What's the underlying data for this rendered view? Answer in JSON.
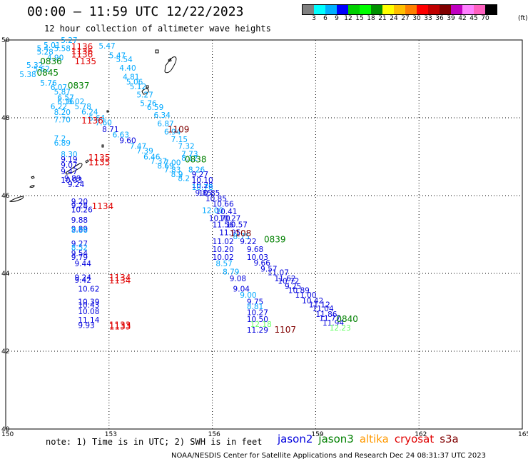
{
  "header": {
    "title": "00:00 – 11:59 UTC 12/22/2023",
    "subtitle": "12 hour collection of altimeter wave heights"
  },
  "colorbar": {
    "colors": [
      "#808080",
      "#00ffff",
      "#00b0ff",
      "#0000ff",
      "#00d000",
      "#00ff00",
      "#009000",
      "#ffff00",
      "#ffc000",
      "#ff8000",
      "#ff0000",
      "#c00000",
      "#800000",
      "#c000c0",
      "#ff80ff",
      "#ff60c0",
      "#000000"
    ],
    "labels": [
      "3",
      "6",
      "9",
      "12",
      "15",
      "18",
      "21",
      "24",
      "27",
      "30",
      "33",
      "36",
      "39",
      "42",
      "45",
      "70"
    ],
    "unit": "(ft)"
  },
  "map": {
    "lon_range": [
      150,
      165
    ],
    "lat_range": [
      40,
      50
    ],
    "lat_ticks": [
      50,
      48,
      46,
      44,
      42,
      40
    ],
    "lon_ticks": [
      150,
      153,
      156,
      159,
      162,
      165
    ]
  },
  "observations": [
    {
      "v": "5.27",
      "lon": 151.6,
      "lat": 49.93,
      "c": "#00a8ff"
    },
    {
      "v": "5.01",
      "lon": 151.1,
      "lat": 49.8,
      "c": "#00a8ff"
    },
    {
      "v": "5.47",
      "lon": 152.7,
      "lat": 49.78,
      "c": "#00a8ff"
    },
    {
      "v": "5.4",
      "lon": 150.9,
      "lat": 49.72,
      "c": "#00a8ff"
    },
    {
      "v": "5.58",
      "lon": 151.4,
      "lat": 49.72,
      "c": "#00a8ff"
    },
    {
      "v": "5.47",
      "lon": 153.0,
      "lat": 49.53,
      "c": "#00a8ff"
    },
    {
      "v": "5.28",
      "lon": 150.9,
      "lat": 49.62,
      "c": "#00a8ff"
    },
    {
      "v": "4.90",
      "lon": 151.2,
      "lat": 49.48,
      "c": "#00a8ff"
    },
    {
      "v": "5.54",
      "lon": 153.2,
      "lat": 49.43,
      "c": "#00a8ff"
    },
    {
      "v": "4.40",
      "lon": 153.3,
      "lat": 49.21,
      "c": "#00a8ff"
    },
    {
      "v": "5.32",
      "lon": 150.6,
      "lat": 49.28,
      "c": "#00a8ff"
    },
    {
      "v": "5.62",
      "lon": 150.8,
      "lat": 49.18,
      "c": "#00a8ff"
    },
    {
      "v": "4.81",
      "lon": 153.4,
      "lat": 48.98,
      "c": "#00a8ff"
    },
    {
      "v": "5.38",
      "lon": 150.4,
      "lat": 49.05,
      "c": "#00a8ff"
    },
    {
      "v": "5.76",
      "lon": 151.0,
      "lat": 48.83,
      "c": "#00a8ff"
    },
    {
      "v": "5.06",
      "lon": 153.5,
      "lat": 48.85,
      "c": "#00a8ff"
    },
    {
      "v": "6.07",
      "lon": 151.3,
      "lat": 48.72,
      "c": "#00a8ff"
    },
    {
      "v": "5.12",
      "lon": 153.6,
      "lat": 48.73,
      "c": "#00a8ff"
    },
    {
      "v": "5.87",
      "lon": 151.4,
      "lat": 48.6,
      "c": "#00a8ff"
    },
    {
      "v": "5.27",
      "lon": 153.8,
      "lat": 48.52,
      "c": "#00a8ff"
    },
    {
      "v": "6.57",
      "lon": 151.5,
      "lat": 48.45,
      "c": "#00a8ff"
    },
    {
      "v": "5.76",
      "lon": 153.9,
      "lat": 48.3,
      "c": "#00a8ff"
    },
    {
      "v": "6.16",
      "lon": 151.5,
      "lat": 48.35,
      "c": "#00a8ff"
    },
    {
      "v": "6.02",
      "lon": 151.8,
      "lat": 48.35,
      "c": "#00a8ff"
    },
    {
      "v": "6.22",
      "lon": 151.3,
      "lat": 48.22,
      "c": "#00a8ff"
    },
    {
      "v": "5.78",
      "lon": 152.0,
      "lat": 48.22,
      "c": "#00a8ff"
    },
    {
      "v": "6.59",
      "lon": 154.1,
      "lat": 48.2,
      "c": "#00a8ff"
    },
    {
      "v": "6.24",
      "lon": 152.2,
      "lat": 48.08,
      "c": "#00a8ff"
    },
    {
      "v": "8.20",
      "lon": 151.4,
      "lat": 48.07,
      "c": "#00a8ff"
    },
    {
      "v": "6.34",
      "lon": 154.3,
      "lat": 48.0,
      "c": "#00a8ff"
    },
    {
      "v": "6.64",
      "lon": 152.4,
      "lat": 47.93,
      "c": "#00a8ff"
    },
    {
      "v": "7.70",
      "lon": 151.4,
      "lat": 47.88,
      "c": "#00a8ff"
    },
    {
      "v": "6.87",
      "lon": 154.4,
      "lat": 47.78,
      "c": "#00a8ff"
    },
    {
      "v": "7.60",
      "lon": 152.6,
      "lat": 47.81,
      "c": "#00a8ff"
    },
    {
      "v": "8.71",
      "lon": 152.8,
      "lat": 47.63,
      "c": "#0000dd"
    },
    {
      "v": "6.94",
      "lon": 154.6,
      "lat": 47.57,
      "c": "#00a8ff"
    },
    {
      "v": "6.63",
      "lon": 153.1,
      "lat": 47.5,
      "c": "#00a8ff"
    },
    {
      "v": "7.2",
      "lon": 151.4,
      "lat": 47.4,
      "c": "#00a8ff"
    },
    {
      "v": "7.15",
      "lon": 154.8,
      "lat": 47.38,
      "c": "#00a8ff"
    },
    {
      "v": "9.60",
      "lon": 153.3,
      "lat": 47.35,
      "c": "#0000dd"
    },
    {
      "v": "6.89",
      "lon": 151.4,
      "lat": 47.28,
      "c": "#00a8ff"
    },
    {
      "v": "7.32",
      "lon": 155.0,
      "lat": 47.2,
      "c": "#00a8ff"
    },
    {
      "v": "7.47",
      "lon": 153.6,
      "lat": 47.2,
      "c": "#00a8ff"
    },
    {
      "v": "7.39",
      "lon": 153.8,
      "lat": 47.08,
      "c": "#00a8ff"
    },
    {
      "v": "7.73",
      "lon": 155.1,
      "lat": 47.0,
      "c": "#00a8ff"
    },
    {
      "v": "8.30",
      "lon": 151.6,
      "lat": 46.99,
      "c": "#00a8ff"
    },
    {
      "v": "6.46",
      "lon": 154.0,
      "lat": 46.93,
      "c": "#00a8ff"
    },
    {
      "v": "8.12",
      "lon": 155.1,
      "lat": 46.9,
      "c": "#00a8ff"
    },
    {
      "v": "9.19",
      "lon": 151.6,
      "lat": 46.86,
      "c": "#0000dd"
    },
    {
      "v": "7.37",
      "lon": 154.2,
      "lat": 46.82,
      "c": "#00a8ff"
    },
    {
      "v": "7.00",
      "lon": 154.6,
      "lat": 46.78,
      "c": "#00a8ff"
    },
    {
      "v": "9.07",
      "lon": 151.6,
      "lat": 46.72,
      "c": "#0000dd"
    },
    {
      "v": "8.69",
      "lon": 154.4,
      "lat": 46.7,
      "c": "#00a8ff"
    },
    {
      "v": "7.83",
      "lon": 154.6,
      "lat": 46.6,
      "c": "#00a8ff"
    },
    {
      "v": "8.26",
      "lon": 155.3,
      "lat": 46.6,
      "c": "#00a8ff"
    },
    {
      "v": "9.47",
      "lon": 151.6,
      "lat": 46.55,
      "c": "#0000dd"
    },
    {
      "v": "8.9",
      "lon": 154.8,
      "lat": 46.48,
      "c": "#00a8ff"
    },
    {
      "v": "9.27",
      "lon": 155.4,
      "lat": 46.48,
      "c": "#0000dd"
    },
    {
      "v": "9.89",
      "lon": 151.7,
      "lat": 46.38,
      "c": "#0000dd"
    },
    {
      "v": "8.2",
      "lon": 155.0,
      "lat": 46.38,
      "c": "#00a8ff"
    },
    {
      "v": "10.10",
      "lon": 155.4,
      "lat": 46.33,
      "c": "#0000dd"
    },
    {
      "v": "10.03",
      "lon": 151.6,
      "lat": 46.33,
      "c": "#0000dd"
    },
    {
      "v": "9.24",
      "lon": 151.8,
      "lat": 46.22,
      "c": "#0000dd"
    },
    {
      "v": "10.28",
      "lon": 155.4,
      "lat": 46.2,
      "c": "#0000dd"
    },
    {
      "v": "10.78",
      "lon": 155.4,
      "lat": 46.15,
      "c": "#00a8ff"
    },
    {
      "v": "10.85",
      "lon": 155.6,
      "lat": 46.0,
      "c": "#0000dd"
    },
    {
      "v": "9.85",
      "lon": 155.5,
      "lat": 46.0,
      "c": "#0000dd"
    },
    {
      "v": "9.20",
      "lon": 151.9,
      "lat": 45.78,
      "c": "#0000dd"
    },
    {
      "v": "10.85",
      "lon": 155.8,
      "lat": 45.85,
      "c": "#0000dd"
    },
    {
      "v": "9.28",
      "lon": 151.9,
      "lat": 45.68,
      "c": "#0000dd"
    },
    {
      "v": "10.66",
      "lon": 156.0,
      "lat": 45.72,
      "c": "#0000dd"
    },
    {
      "v": "10.26",
      "lon": 151.9,
      "lat": 45.57,
      "c": "#0000dd"
    },
    {
      "v": "12.00",
      "lon": 155.7,
      "lat": 45.55,
      "c": "#00a8ff"
    },
    {
      "v": "10.41",
      "lon": 156.1,
      "lat": 45.52,
      "c": "#0000dd"
    },
    {
      "v": "9.88",
      "lon": 151.9,
      "lat": 45.3,
      "c": "#0000dd"
    },
    {
      "v": "10.70",
      "lon": 155.9,
      "lat": 45.35,
      "c": "#0000dd"
    },
    {
      "v": "10.27",
      "lon": 156.2,
      "lat": 45.35,
      "c": "#0000dd"
    },
    {
      "v": "10.57",
      "lon": 156.4,
      "lat": 45.18,
      "c": "#0000dd"
    },
    {
      "v": "11.56",
      "lon": 156.0,
      "lat": 45.18,
      "c": "#0000dd"
    },
    {
      "v": "9.89",
      "lon": 151.9,
      "lat": 45.07,
      "c": "#0000dd"
    },
    {
      "v": "8.86",
      "lon": 151.9,
      "lat": 45.05,
      "c": "#00a8ff"
    },
    {
      "v": "11.95",
      "lon": 156.2,
      "lat": 44.98,
      "c": "#0000dd"
    },
    {
      "v": "8.75",
      "lon": 156.6,
      "lat": 44.88,
      "c": "#00a8ff"
    },
    {
      "v": "11.02",
      "lon": 156.0,
      "lat": 44.75,
      "c": "#0000dd"
    },
    {
      "v": "9.22",
      "lon": 156.8,
      "lat": 44.75,
      "c": "#0000dd"
    },
    {
      "v": "9.27",
      "lon": 151.9,
      "lat": 44.7,
      "c": "#0000dd"
    },
    {
      "v": "8.52",
      "lon": 151.9,
      "lat": 44.6,
      "c": "#00a8ff"
    },
    {
      "v": "9.68",
      "lon": 157.0,
      "lat": 44.55,
      "c": "#0000dd"
    },
    {
      "v": "10.20",
      "lon": 156.0,
      "lat": 44.55,
      "c": "#0000dd"
    },
    {
      "v": "9.54",
      "lon": 151.9,
      "lat": 44.45,
      "c": "#0000dd"
    },
    {
      "v": "10.03",
      "lon": 157.0,
      "lat": 44.35,
      "c": "#0000dd"
    },
    {
      "v": "10.02",
      "lon": 156.0,
      "lat": 44.35,
      "c": "#0000dd"
    },
    {
      "v": "9.79",
      "lon": 151.9,
      "lat": 44.35,
      "c": "#0000dd"
    },
    {
      "v": "9.66",
      "lon": 157.2,
      "lat": 44.2,
      "c": "#0000dd"
    },
    {
      "v": "9.44",
      "lon": 152.0,
      "lat": 44.18,
      "c": "#0000dd"
    },
    {
      "v": "8.57",
      "lon": 156.1,
      "lat": 44.18,
      "c": "#00a8ff"
    },
    {
      "v": "9.57",
      "lon": 157.4,
      "lat": 44.05,
      "c": "#0000dd"
    },
    {
      "v": "8.79",
      "lon": 156.3,
      "lat": 43.97,
      "c": "#00a8ff"
    },
    {
      "v": "11.07",
      "lon": 157.6,
      "lat": 43.95,
      "c": "#0000dd"
    },
    {
      "v": "9.24",
      "lon": 152.0,
      "lat": 43.83,
      "c": "#0000dd"
    },
    {
      "v": "9.08",
      "lon": 156.5,
      "lat": 43.8,
      "c": "#0000dd"
    },
    {
      "v": "11.62",
      "lon": 157.8,
      "lat": 43.8,
      "c": "#0000dd"
    },
    {
      "v": "9.42",
      "lon": 152.0,
      "lat": 43.76,
      "c": "#0000dd"
    },
    {
      "v": "10.72",
      "lon": 157.9,
      "lat": 43.73,
      "c": "#0000dd"
    },
    {
      "v": "9.25",
      "lon": 158.1,
      "lat": 43.6,
      "c": "#0000dd"
    },
    {
      "v": "9.04",
      "lon": 156.6,
      "lat": 43.53,
      "c": "#0000dd"
    },
    {
      "v": "10.62",
      "lon": 152.1,
      "lat": 43.53,
      "c": "#0000dd"
    },
    {
      "v": "10.89",
      "lon": 158.2,
      "lat": 43.5,
      "c": "#0000dd"
    },
    {
      "v": "9.00",
      "lon": 156.8,
      "lat": 43.38,
      "c": "#00a8ff"
    },
    {
      "v": "11.00",
      "lon": 158.4,
      "lat": 43.38,
      "c": "#0000dd"
    },
    {
      "v": "10.39",
      "lon": 152.1,
      "lat": 43.2,
      "c": "#0000dd"
    },
    {
      "v": "9.75",
      "lon": 157.0,
      "lat": 43.2,
      "c": "#0000dd"
    },
    {
      "v": "10.42",
      "lon": 158.6,
      "lat": 43.23,
      "c": "#0000dd"
    },
    {
      "v": "10.43",
      "lon": 152.1,
      "lat": 43.12,
      "c": "#0000dd"
    },
    {
      "v": "11.12",
      "lon": 158.8,
      "lat": 43.13,
      "c": "#0000dd"
    },
    {
      "v": "8.81",
      "lon": 157.0,
      "lat": 43.08,
      "c": "#00a8ff"
    },
    {
      "v": "11.04",
      "lon": 158.9,
      "lat": 43.03,
      "c": "#0000dd"
    },
    {
      "v": "10.08",
      "lon": 152.1,
      "lat": 42.95,
      "c": "#0000dd"
    },
    {
      "v": "10.27",
      "lon": 157.0,
      "lat": 42.93,
      "c": "#0000dd"
    },
    {
      "v": "11.86",
      "lon": 159.0,
      "lat": 42.88,
      "c": "#0000dd"
    },
    {
      "v": "11.14",
      "lon": 152.1,
      "lat": 42.73,
      "c": "#0000dd"
    },
    {
      "v": "10.50",
      "lon": 157.0,
      "lat": 42.75,
      "c": "#0000dd"
    },
    {
      "v": "11.77",
      "lon": 159.1,
      "lat": 42.78,
      "c": "#0000dd"
    },
    {
      "v": "11.94",
      "lon": 159.2,
      "lat": 42.66,
      "c": "#0000dd"
    },
    {
      "v": "12.18",
      "lon": 157.1,
      "lat": 42.62,
      "c": "#66ff66"
    },
    {
      "v": "9.93",
      "lon": 152.1,
      "lat": 42.6,
      "c": "#0000dd"
    },
    {
      "v": "12.23",
      "lon": 159.4,
      "lat": 42.53,
      "c": "#66ff66"
    },
    {
      "v": "11.29",
      "lon": 157.0,
      "lat": 42.48,
      "c": "#0000dd"
    }
  ],
  "times": [
    {
      "t": "1136",
      "lon": 151.9,
      "lat": 49.75,
      "c": "#e00000"
    },
    {
      "t": "1136",
      "lon": 151.9,
      "lat": 49.63,
      "c": "#e00000"
    },
    {
      "t": "1136",
      "lon": 151.9,
      "lat": 49.55,
      "c": "#e00000"
    },
    {
      "t": "0836",
      "lon": 151.0,
      "lat": 49.38,
      "c": "#008000"
    },
    {
      "t": "1135",
      "lon": 152.0,
      "lat": 49.38,
      "c": "#e00000"
    },
    {
      "t": "0845",
      "lon": 150.9,
      "lat": 49.08,
      "c": "#008000"
    },
    {
      "t": "0837",
      "lon": 151.8,
      "lat": 48.75,
      "c": "#008000"
    },
    {
      "t": "1136",
      "lon": 152.2,
      "lat": 47.85,
      "c": "#e00000"
    },
    {
      "t": "1109",
      "lon": 154.7,
      "lat": 47.62,
      "c": "#800000"
    },
    {
      "t": "1135",
      "lon": 152.4,
      "lat": 46.9,
      "c": "#e00000"
    },
    {
      "t": "1135",
      "lon": 152.4,
      "lat": 46.78,
      "c": "#e00000"
    },
    {
      "t": "0838",
      "lon": 155.2,
      "lat": 46.85,
      "c": "#008000"
    },
    {
      "t": "1134",
      "lon": 152.5,
      "lat": 45.65,
      "c": "#e00000"
    },
    {
      "t": "1108",
      "lon": 156.5,
      "lat": 44.95,
      "c": "#800000"
    },
    {
      "t": "0839",
      "lon": 157.5,
      "lat": 44.8,
      "c": "#008000"
    },
    {
      "t": "1134",
      "lon": 153.0,
      "lat": 43.82,
      "c": "#e00000"
    },
    {
      "t": "1134",
      "lon": 153.0,
      "lat": 43.74,
      "c": "#e00000"
    },
    {
      "t": "0840",
      "lon": 159.6,
      "lat": 42.75,
      "c": "#008000"
    },
    {
      "t": "1133",
      "lon": 153.0,
      "lat": 42.6,
      "c": "#e00000"
    },
    {
      "t": "1133",
      "lon": 153.0,
      "lat": 42.56,
      "c": "#e00000"
    },
    {
      "t": "1107",
      "lon": 157.8,
      "lat": 42.48,
      "c": "#800000"
    }
  ],
  "footer": {
    "note": "note:  1) Time is in UTC; 2) SWH is in feet",
    "satellites": [
      {
        "name": "jason2",
        "color": "#0000dd"
      },
      {
        "name": "jason3",
        "color": "#008000"
      },
      {
        "name": "altika",
        "color": "#ff9900"
      },
      {
        "name": "cryosat",
        "color": "#e00000"
      },
      {
        "name": "s3a",
        "color": "#800000"
      }
    ],
    "credit": "NOAA/NESDIS Center for Satellite Applications and Research     Dec 24 08:31:37 UTC 2023"
  }
}
